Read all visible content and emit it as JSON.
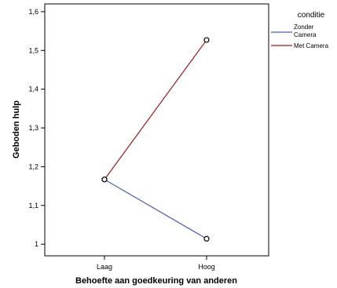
{
  "chart_data": {
    "type": "line",
    "xlabel": "Behoefte aan goedkeuring van anderen",
    "ylabel": "Geboden hulp",
    "categories": [
      "Laag",
      "Hoog"
    ],
    "ylim": [
      0.97,
      1.62
    ],
    "yticks": [
      1.0,
      1.1,
      1.2,
      1.3,
      1.4,
      1.5,
      1.6
    ],
    "ytick_labels": [
      "1",
      "1,1",
      "1,2",
      "1,3",
      "1,4",
      "1,5",
      "1,6"
    ],
    "legend": {
      "title": "conditie",
      "placement": "right"
    },
    "series": [
      {
        "name": "Zonder Camera",
        "name_lines": [
          "Zonder",
          "Camera"
        ],
        "values": [
          1.167,
          1.014
        ],
        "color": "#4a5fb5"
      },
      {
        "name": "Met Camera",
        "name_lines": [
          "Met Camera"
        ],
        "values": [
          1.167,
          1.527
        ],
        "color": "#a01818"
      }
    ],
    "markers": "open-circle",
    "grid": false
  }
}
